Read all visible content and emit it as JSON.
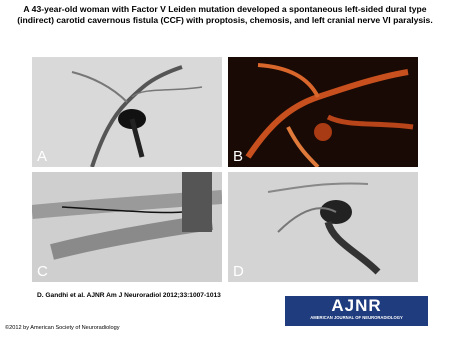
{
  "header": {
    "title": "A 43-year-old woman with Factor V Leiden mutation developed a spontaneous left-sided dural type (indirect) carotid cavernous fistula (CCF) with proptosis, chemosis, and left cranial nerve VI paralysis."
  },
  "panels": [
    {
      "label": "A"
    },
    {
      "label": "B"
    },
    {
      "label": "C"
    },
    {
      "label": "D"
    }
  ],
  "citation": "D. Gandhi et al. AJNR Am J Neuroradiol 2012;33:1007-1013",
  "logo": {
    "name": "AJNR",
    "subtitle": "AMERICAN JOURNAL OF NEURORADIOLOGY"
  },
  "copyright": "©2012 by American Society of Neuroradiology"
}
